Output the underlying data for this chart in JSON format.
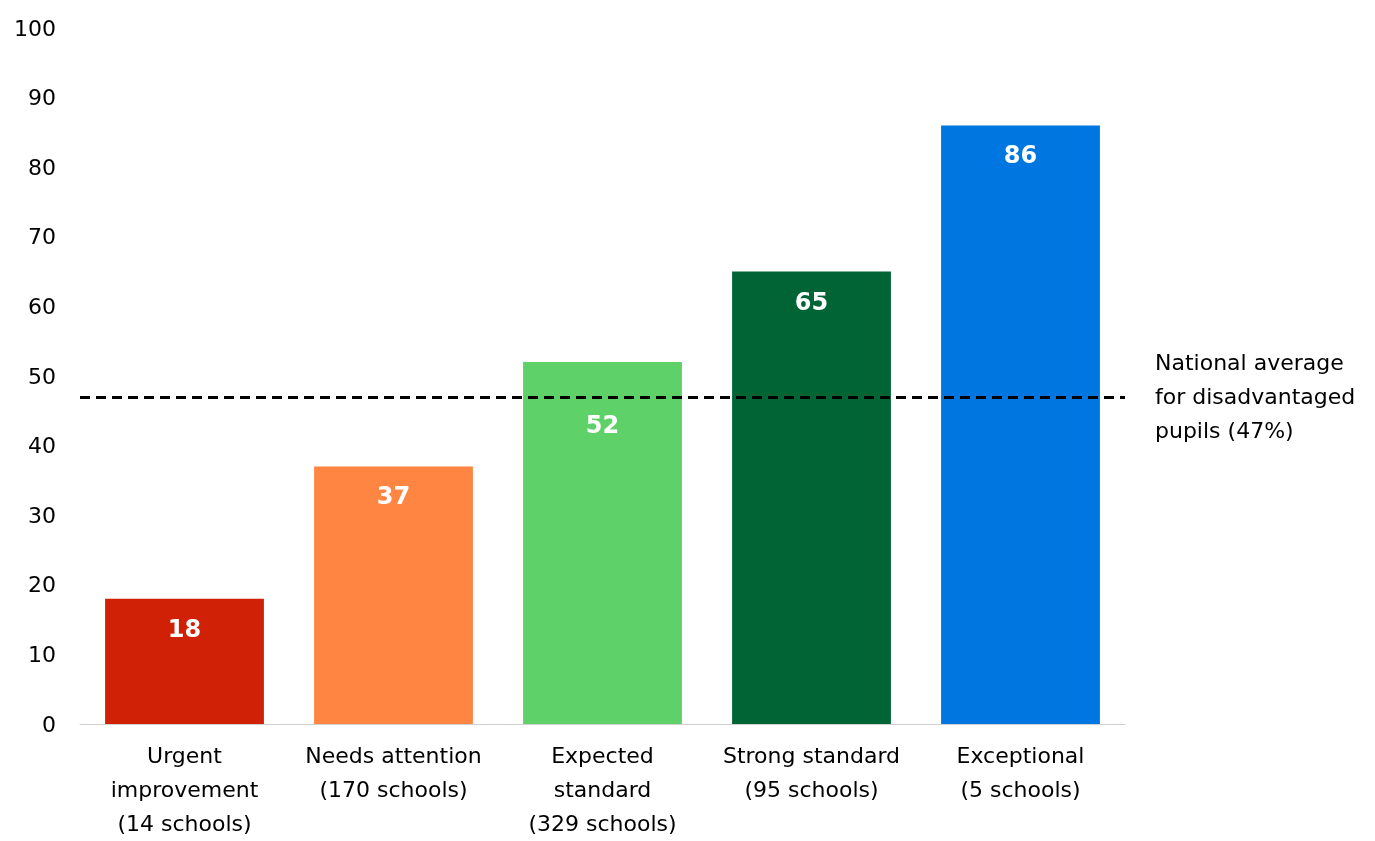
{
  "chart_data": {
    "type": "bar",
    "categories": [
      "Urgent\nimprovement\n(14 schools)",
      "Needs attention\n(170 schools)",
      "Expected\nstandard\n(329 schools)",
      "Strong standard\n(95 schools)",
      "Exceptional\n(5 schools)"
    ],
    "values": [
      18,
      37,
      52,
      65,
      86
    ],
    "colors": [
      "#d02106",
      "#ff8543",
      "#5ed268",
      "#006435",
      "#0077e0"
    ],
    "ylim": [
      0,
      100
    ],
    "yticks": [
      0,
      10,
      20,
      30,
      40,
      50,
      60,
      70,
      80,
      90,
      100
    ],
    "grid": false,
    "data_labels": true,
    "ref_lines": [
      {
        "axis": "y",
        "value": 47,
        "label": "National average\nfor disadvantaged\npupils (47%)",
        "color": "#000000",
        "line_style": "dashed"
      }
    ]
  }
}
